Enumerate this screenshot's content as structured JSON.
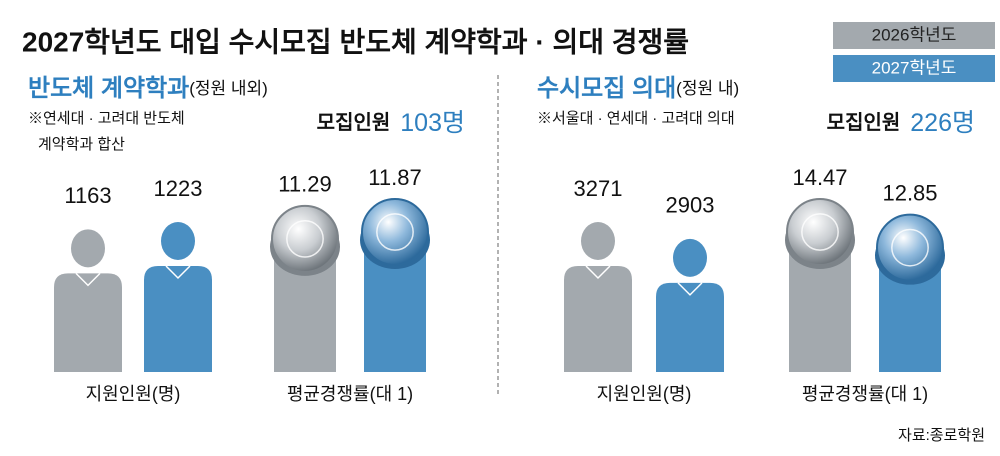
{
  "title": "2027학년도 대입 수시모집 반도체 계약학과 · 의대 경쟁률",
  "source": "자료:종로학원",
  "panels": [
    {
      "title": "반도체 계약학과",
      "title_note": "(정원 내외)",
      "note": [
        "※연세대 · 고려대 반도체",
        "계약학과 합산"
      ],
      "quota_caption": "모집인원",
      "quota": "103명"
    },
    {
      "title": "수시모집 의대",
      "title_note": "(정원 내)",
      "note": [
        "※서울대 · 연세대 · 고려대 의대"
      ],
      "quota_caption": "모집인원",
      "quota": "226명"
    }
  ],
  "chart_data": [
    {
      "type": "person",
      "xlabel": "지원인원(명)",
      "series": [
        {
          "name": "2026학년도",
          "color": "#a3a9ae",
          "values": [
            1163
          ]
        },
        {
          "name": "2027학년도",
          "color": "#4a8fc2",
          "values": [
            1223
          ]
        }
      ]
    },
    {
      "type": "coin",
      "xlabel": "평균경쟁률(대 1)",
      "series": [
        {
          "name": "2026학년도",
          "color": "#a3a9ae",
          "values": [
            11.29
          ]
        },
        {
          "name": "2027학년도",
          "color": "#4a8fc2",
          "values": [
            11.87
          ]
        }
      ]
    },
    {
      "type": "person",
      "xlabel": "지원인원(명)",
      "series": [
        {
          "name": "2026학년도",
          "color": "#a3a9ae",
          "values": [
            3271
          ]
        },
        {
          "name": "2027학년도",
          "color": "#4a8fc2",
          "values": [
            2903
          ]
        }
      ]
    },
    {
      "type": "coin",
      "xlabel": "평균경쟁률(대 1)",
      "series": [
        {
          "name": "2026학년도",
          "color": "#a3a9ae",
          "values": [
            14.47
          ]
        },
        {
          "name": "2027학년도",
          "color": "#4a8fc2",
          "values": [
            12.85
          ]
        }
      ]
    }
  ]
}
